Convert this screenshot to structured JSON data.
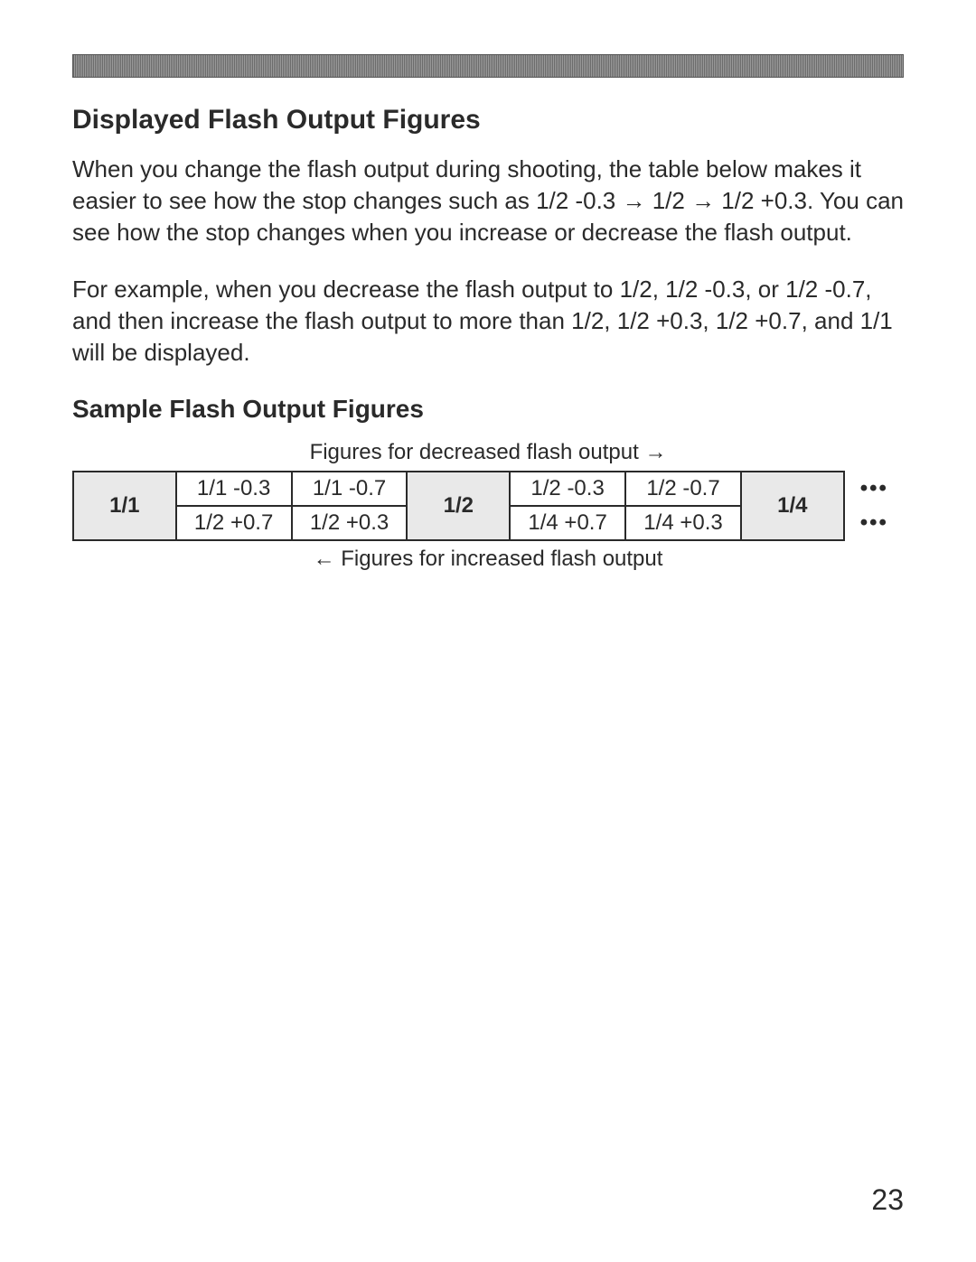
{
  "heading": "Displayed Flash Output Figures",
  "paragraph1": "When you change the flash output during shooting, the table below makes it easier to see how the stop changes such as 1/2 -0.3 → 1/2 → 1/2 +0.3. You can see how the stop changes when you increase or decrease the flash output.",
  "paragraph2": "For example, when you decrease the flash output to 1/2, 1/2 -0.3, or 1/2 -0.7, and then increase the flash output to more than 1/2, 1/2 +0.3, 1/2 +0.7, and 1/1 will be displayed.",
  "subheading": "Sample Flash Output Figures",
  "caption_top": "Figures for decreased flash output →",
  "caption_bottom": "← Figures for increased flash output",
  "table": {
    "col_main_labels": [
      "1/1",
      "1/2",
      "1/4"
    ],
    "row_top": [
      "1/1 -0.3",
      "1/1 -0.7",
      "1/2 -0.3",
      "1/2 -0.7"
    ],
    "row_bottom": [
      "1/2 +0.7",
      "1/2 +0.3",
      "1/4 +0.7",
      "1/4 +0.3"
    ],
    "ellipsis": "•••",
    "shaded_bg": "#e9e9e9",
    "border_color": "#2a2a2a"
  },
  "page_number": "23"
}
